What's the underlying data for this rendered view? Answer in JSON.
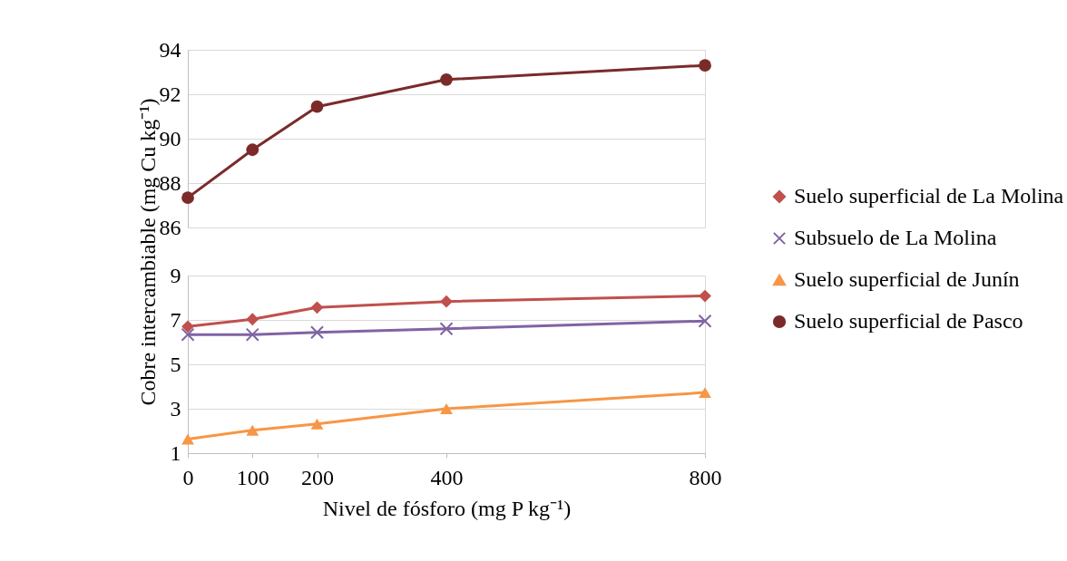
{
  "chart_data": [
    {
      "type": "line",
      "xlim": [
        0,
        800
      ],
      "ylim": [
        86,
        94
      ],
      "yticks": [
        86,
        88,
        90,
        92,
        94
      ],
      "grid": "y",
      "legend": "right",
      "tick_labels": "y",
      "x": [
        0,
        100,
        200,
        400,
        800
      ],
      "series": [
        {
          "name": "Suelo superficial de Pasco",
          "color": "#7b2a2a",
          "marker": "circle",
          "values": [
            87.34,
            89.5,
            91.44,
            92.66,
            93.3
          ]
        }
      ]
    },
    {
      "type": "line",
      "xlabel": "Nivel de fósforo (mg P kg⁻¹)",
      "ylabel": "Cobre intercambiable (mg Cu kg⁻¹)",
      "xlim": [
        0,
        800
      ],
      "xticks": [
        0,
        100,
        200,
        400,
        800
      ],
      "ylim": [
        1,
        9
      ],
      "yticks": [
        1,
        3,
        5,
        7,
        9
      ],
      "grid": "y",
      "legend": "right",
      "x": [
        0,
        100,
        200,
        400,
        800
      ],
      "series": [
        {
          "name": "Suelo superficial de La Molina",
          "color": "#c0504d",
          "marker": "diamond",
          "values": [
            6.7,
            7.03,
            7.56,
            7.83,
            8.08
          ]
        },
        {
          "name": "Subsuelo de La Molina",
          "color": "#8064a2",
          "marker": "cross",
          "values": [
            6.34,
            6.34,
            6.44,
            6.6,
            6.95
          ]
        },
        {
          "name": "Suelo superficial de Junín",
          "color": "#f79646",
          "marker": "triangle",
          "values": [
            1.63,
            2.03,
            2.32,
            3.0,
            3.73
          ]
        }
      ]
    }
  ]
}
